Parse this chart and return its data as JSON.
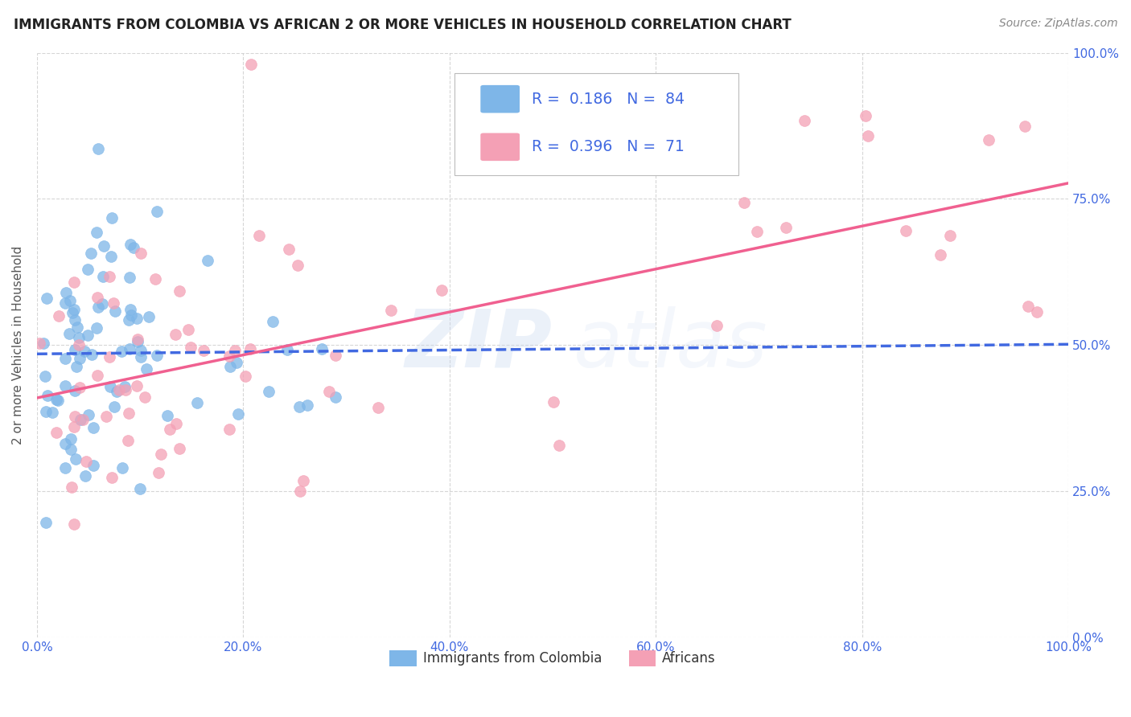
{
  "title": "IMMIGRANTS FROM COLOMBIA VS AFRICAN 2 OR MORE VEHICLES IN HOUSEHOLD CORRELATION CHART",
  "source": "Source: ZipAtlas.com",
  "ylabel": "2 or more Vehicles in Household",
  "blue_R": 0.186,
  "blue_N": 84,
  "pink_R": 0.396,
  "pink_N": 71,
  "blue_color": "#7EB6E8",
  "pink_color": "#F4A0B5",
  "blue_line_color": "#4169E1",
  "pink_line_color": "#F06090",
  "watermark_zip": "ZIP",
  "watermark_atlas": "atlas",
  "legend_label_blue": "Immigrants from Colombia",
  "legend_label_pink": "Africans",
  "title_fontsize": 12,
  "tick_color": "#4169E1",
  "tick_fontsize": 11,
  "ylabel_fontsize": 11,
  "source_color": "#888888",
  "grid_color": "#CCCCCC"
}
